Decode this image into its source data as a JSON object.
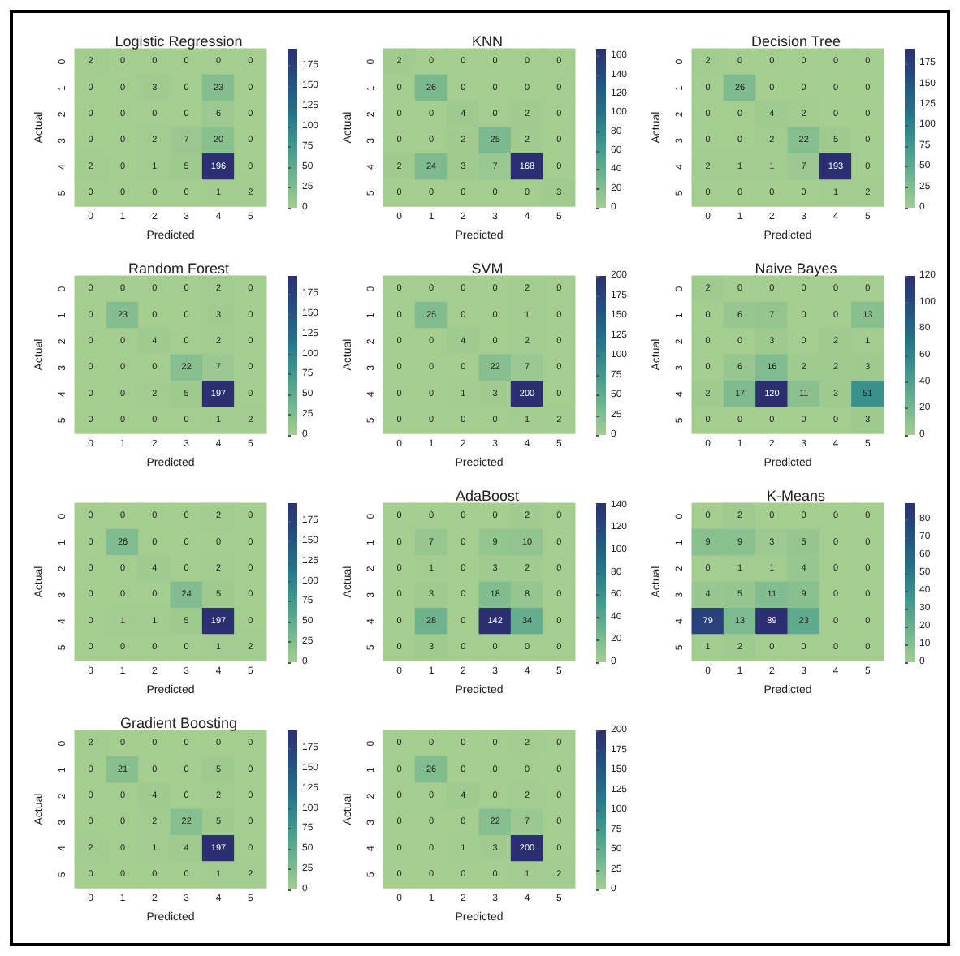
{
  "chart_data": [
    {
      "type": "heatmap",
      "data_labels": true,
      "title": "Logistic Regression",
      "xlabel": "Predicted",
      "ylabel": "Actual",
      "categories": [
        "0",
        "1",
        "2",
        "3",
        "4",
        "5"
      ],
      "y_categories": [
        "0",
        "1",
        "2",
        "3",
        "4",
        "5"
      ],
      "cells": [
        [
          2,
          0,
          0,
          0,
          0,
          0
        ],
        [
          0,
          0,
          3,
          0,
          23,
          0
        ],
        [
          0,
          0,
          0,
          0,
          6,
          0
        ],
        [
          0,
          0,
          2,
          7,
          20,
          0
        ],
        [
          2,
          0,
          1,
          5,
          196,
          0
        ],
        [
          0,
          0,
          0,
          0,
          1,
          2
        ]
      ],
      "clim": [
        0,
        196
      ],
      "cticks": [
        0,
        25,
        50,
        75,
        100,
        125,
        150,
        175
      ]
    },
    {
      "type": "heatmap",
      "data_labels": true,
      "title": "KNN",
      "xlabel": "Predicted",
      "ylabel": "Actual",
      "categories": [
        "0",
        "1",
        "2",
        "3",
        "4",
        "5"
      ],
      "y_categories": [
        "0",
        "1",
        "2",
        "3",
        "4",
        "5"
      ],
      "cells": [
        [
          2,
          0,
          0,
          0,
          0,
          0
        ],
        [
          0,
          26,
          0,
          0,
          0,
          0
        ],
        [
          0,
          0,
          4,
          0,
          2,
          0
        ],
        [
          0,
          0,
          2,
          25,
          2,
          0
        ],
        [
          2,
          24,
          3,
          7,
          168,
          0
        ],
        [
          0,
          0,
          0,
          0,
          0,
          3
        ]
      ],
      "clim": [
        0,
        168
      ],
      "cticks": [
        0,
        20,
        40,
        60,
        80,
        100,
        120,
        140,
        160
      ]
    },
    {
      "type": "heatmap",
      "data_labels": true,
      "title": "Decision Tree",
      "xlabel": "Predicted",
      "ylabel": "Actual",
      "categories": [
        "0",
        "1",
        "2",
        "3",
        "4",
        "5"
      ],
      "y_categories": [
        "0",
        "1",
        "2",
        "3",
        "4",
        "5"
      ],
      "cells": [
        [
          2,
          0,
          0,
          0,
          0,
          0
        ],
        [
          0,
          26,
          0,
          0,
          0,
          0
        ],
        [
          0,
          0,
          4,
          2,
          0,
          0
        ],
        [
          0,
          0,
          2,
          22,
          5,
          0
        ],
        [
          2,
          1,
          1,
          7,
          193,
          0
        ],
        [
          0,
          0,
          0,
          0,
          1,
          2
        ]
      ],
      "clim": [
        0,
        193
      ],
      "cticks": [
        0,
        25,
        50,
        75,
        100,
        125,
        150,
        175
      ]
    },
    {
      "type": "heatmap",
      "data_labels": true,
      "title": "Random Forest",
      "xlabel": "Predicted",
      "ylabel": "Actual",
      "categories": [
        "0",
        "1",
        "2",
        "3",
        "4",
        "5"
      ],
      "y_categories": [
        "0",
        "1",
        "2",
        "3",
        "4",
        "5"
      ],
      "cells": [
        [
          0,
          0,
          0,
          0,
          2,
          0
        ],
        [
          0,
          23,
          0,
          0,
          3,
          0
        ],
        [
          0,
          0,
          4,
          0,
          2,
          0
        ],
        [
          0,
          0,
          0,
          22,
          7,
          0
        ],
        [
          0,
          0,
          2,
          5,
          197,
          0
        ],
        [
          0,
          0,
          0,
          0,
          1,
          2
        ]
      ],
      "clim": [
        0,
        197
      ],
      "cticks": [
        0,
        25,
        50,
        75,
        100,
        125,
        150,
        175
      ]
    },
    {
      "type": "heatmap",
      "data_labels": true,
      "title": "SVM",
      "xlabel": "Predicted",
      "ylabel": "Actual",
      "categories": [
        "0",
        "1",
        "2",
        "3",
        "4",
        "5"
      ],
      "y_categories": [
        "0",
        "1",
        "2",
        "3",
        "4",
        "5"
      ],
      "cells": [
        [
          0,
          0,
          0,
          0,
          2,
          0
        ],
        [
          0,
          25,
          0,
          0,
          1,
          0
        ],
        [
          0,
          0,
          4,
          0,
          2,
          0
        ],
        [
          0,
          0,
          0,
          22,
          7,
          0
        ],
        [
          0,
          0,
          1,
          3,
          200,
          0
        ],
        [
          0,
          0,
          0,
          0,
          1,
          2
        ]
      ],
      "clim": [
        0,
        200
      ],
      "cticks": [
        0,
        25,
        50,
        75,
        100,
        125,
        150,
        175,
        200
      ]
    },
    {
      "type": "heatmap",
      "data_labels": true,
      "title": "Naive Bayes",
      "xlabel": "Predicted",
      "ylabel": "Actual",
      "categories": [
        "0",
        "1",
        "2",
        "3",
        "4",
        "5"
      ],
      "y_categories": [
        "0",
        "1",
        "2",
        "3",
        "4",
        "5"
      ],
      "cells": [
        [
          2,
          0,
          0,
          0,
          0,
          0
        ],
        [
          0,
          6,
          7,
          0,
          0,
          13
        ],
        [
          0,
          0,
          3,
          0,
          2,
          1
        ],
        [
          0,
          6,
          16,
          2,
          2,
          3
        ],
        [
          2,
          17,
          120,
          11,
          3,
          51
        ],
        [
          0,
          0,
          0,
          0,
          0,
          3
        ]
      ],
      "clim": [
        0,
        120
      ],
      "cticks": [
        0,
        20,
        40,
        60,
        80,
        100,
        120
      ]
    },
    {
      "type": "heatmap",
      "xlabel": "Predicted",
      "ylabel": "Actual",
      "categories": [
        "0",
        "1",
        "2",
        "3",
        "4",
        "5"
      ],
      "y_categories": [
        "0",
        "1",
        "2",
        "3",
        "4",
        "5"
      ],
      "cells": [
        [
          0,
          0,
          0,
          0,
          2,
          0
        ],
        [
          0,
          26,
          0,
          0,
          0,
          0
        ],
        [
          0,
          0,
          4,
          0,
          2,
          0
        ],
        [
          0,
          0,
          0,
          24,
          5,
          0
        ],
        [
          0,
          1,
          1,
          5,
          197,
          0
        ],
        [
          0,
          0,
          0,
          0,
          1,
          2
        ]
      ],
      "clim": [
        0,
        197
      ],
      "cticks": [
        0,
        25,
        50,
        75,
        100,
        125,
        150,
        175
      ],
      "data_labels": true
    },
    {
      "type": "heatmap",
      "data_labels": true,
      "title": "AdaBoost",
      "xlabel": "Predicted",
      "ylabel": "Actual",
      "categories": [
        "0",
        "1",
        "2",
        "3",
        "4",
        "5"
      ],
      "y_categories": [
        "0",
        "1",
        "2",
        "3",
        "4",
        "5"
      ],
      "cells": [
        [
          0,
          0,
          0,
          0,
          2,
          0
        ],
        [
          0,
          7,
          0,
          9,
          10,
          0
        ],
        [
          0,
          1,
          0,
          3,
          2,
          0
        ],
        [
          0,
          3,
          0,
          18,
          8,
          0
        ],
        [
          0,
          28,
          0,
          142,
          34,
          0
        ],
        [
          0,
          3,
          0,
          0,
          0,
          0
        ]
      ],
      "clim": [
        0,
        142
      ],
      "cticks": [
        0,
        20,
        40,
        60,
        80,
        100,
        120,
        140
      ]
    },
    {
      "type": "heatmap",
      "data_labels": true,
      "title": "K-Means",
      "xlabel": "Predicted",
      "ylabel": "Actual",
      "categories": [
        "0",
        "1",
        "2",
        "3",
        "4",
        "5"
      ],
      "y_categories": [
        "0",
        "1",
        "2",
        "3",
        "4",
        "5"
      ],
      "cells": [
        [
          0,
          2,
          0,
          0,
          0,
          0
        ],
        [
          9,
          9,
          3,
          5,
          0,
          0
        ],
        [
          0,
          1,
          1,
          4,
          0,
          0
        ],
        [
          4,
          5,
          11,
          9,
          0,
          0
        ],
        [
          79,
          13,
          89,
          23,
          0,
          0
        ],
        [
          1,
          2,
          0,
          0,
          0,
          0
        ]
      ],
      "clim": [
        0,
        89
      ],
      "cticks": [
        0,
        10,
        20,
        30,
        40,
        50,
        60,
        70,
        80
      ]
    },
    {
      "type": "heatmap",
      "data_labels": true,
      "title": "Gradient Boosting",
      "xlabel": "Predicted",
      "ylabel": "Actual",
      "categories": [
        "0",
        "1",
        "2",
        "3",
        "4",
        "5"
      ],
      "y_categories": [
        "0",
        "1",
        "2",
        "3",
        "4",
        "5"
      ],
      "cells": [
        [
          2,
          0,
          0,
          0,
          0,
          0
        ],
        [
          0,
          21,
          0,
          0,
          5,
          0
        ],
        [
          0,
          0,
          4,
          0,
          2,
          0
        ],
        [
          0,
          0,
          2,
          22,
          5,
          0
        ],
        [
          2,
          0,
          1,
          4,
          197,
          0
        ],
        [
          0,
          0,
          0,
          0,
          1,
          2
        ]
      ],
      "clim": [
        0,
        197
      ],
      "cticks": [
        0,
        25,
        50,
        75,
        100,
        125,
        150,
        175
      ]
    },
    {
      "type": "heatmap",
      "xlabel": "Predicted",
      "ylabel": "Actual",
      "categories": [
        "0",
        "1",
        "2",
        "3",
        "4",
        "5"
      ],
      "y_categories": [
        "0",
        "1",
        "2",
        "3",
        "4",
        "5"
      ],
      "cells": [
        [
          0,
          0,
          0,
          0,
          2,
          0
        ],
        [
          0,
          26,
          0,
          0,
          0,
          0
        ],
        [
          0,
          0,
          4,
          0,
          2,
          0
        ],
        [
          0,
          0,
          0,
          22,
          7,
          0
        ],
        [
          0,
          0,
          1,
          3,
          200,
          0
        ],
        [
          0,
          0,
          0,
          0,
          1,
          2
        ]
      ],
      "clim": [
        0,
        200
      ],
      "cticks": [
        0,
        25,
        50,
        75,
        100,
        125,
        150,
        175,
        200
      ],
      "data_labels": true
    }
  ]
}
